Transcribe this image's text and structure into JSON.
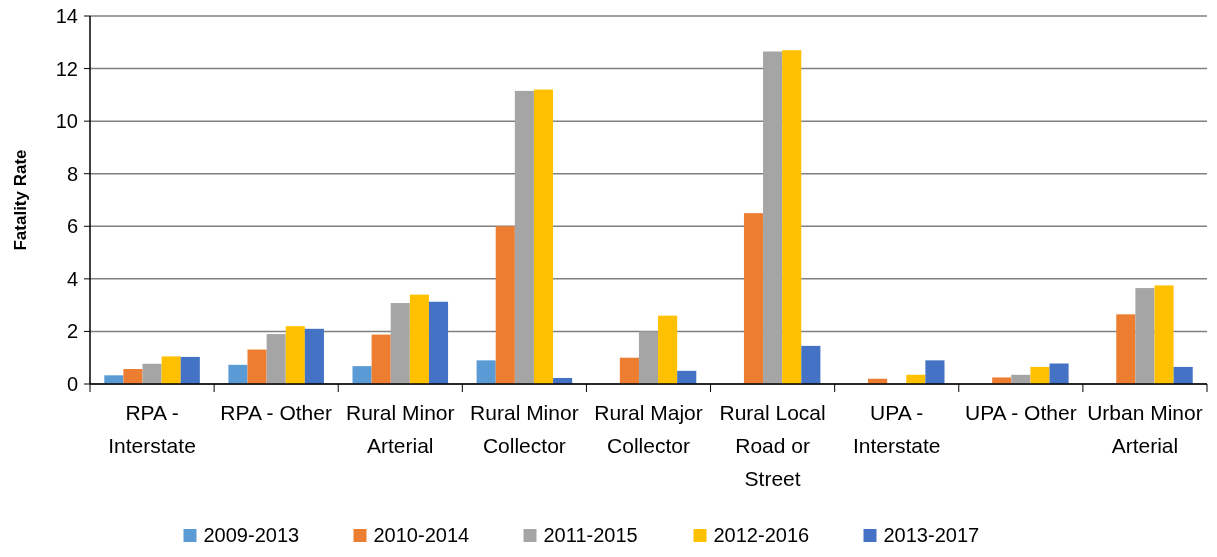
{
  "chart_data": {
    "type": "bar",
    "ylabel": "Fatality Rate",
    "categories": [
      "RPA - Interstate",
      "RPA - Other",
      "Rural Minor Arterial",
      "Rural Minor Collector",
      "Rural Major Collector",
      "Rural Local Road or Street",
      "UPA - Interstate",
      "UPA - Other",
      "Urban Minor Arterial"
    ],
    "series": [
      {
        "name": "2009-2013",
        "color": "#5b9bd5",
        "values": [
          0.33,
          0.73,
          0.68,
          0.9,
          null,
          null,
          null,
          null,
          null
        ]
      },
      {
        "name": "2010-2014",
        "color": "#ed7d31",
        "values": [
          0.57,
          1.31,
          1.88,
          6.0,
          1.0,
          6.5,
          0.2,
          0.25,
          2.65
        ]
      },
      {
        "name": "2011-2015",
        "color": "#a5a5a5",
        "values": [
          0.77,
          1.9,
          3.08,
          11.15,
          2.0,
          12.65,
          null,
          0.35,
          3.65
        ]
      },
      {
        "name": "2012-2016",
        "color": "#ffc000",
        "values": [
          1.05,
          2.2,
          3.4,
          11.2,
          2.6,
          12.7,
          0.35,
          0.65,
          3.75
        ]
      },
      {
        "name": "2013-2017",
        "color": "#4472c4",
        "values": [
          1.03,
          2.1,
          3.13,
          0.23,
          0.5,
          1.45,
          0.9,
          0.78,
          0.65
        ]
      }
    ],
    "ylim": [
      0,
      14
    ],
    "yticks": [
      0,
      2,
      4,
      6,
      8,
      10,
      12,
      14
    ],
    "grid": "y",
    "legend": "bottom"
  }
}
